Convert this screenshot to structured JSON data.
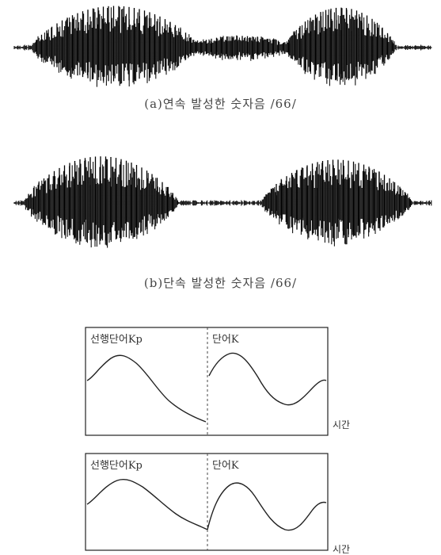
{
  "figure": {
    "caption_a": "(a)연속 발성한 숫자음 /66/",
    "caption_b": "(b)단속 발성한 숫자음 /66/",
    "panels": {
      "top_left_label": "선행단어Kp",
      "top_right_label": "단어K",
      "bottom_left_label": "선행단어Kp",
      "bottom_right_label": "단어K"
    },
    "axis_label_top": "시간",
    "axis_label_bottom": "시간"
  }
}
